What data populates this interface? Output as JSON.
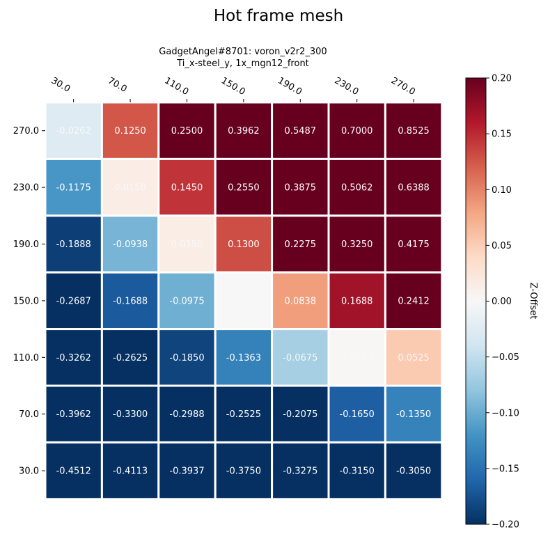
{
  "chart_data": {
    "type": "heatmap",
    "title": "Hot frame mesh",
    "subtitle_line1": "GadgetAngel#8701: voron_v2r2_300",
    "subtitle_line2": "Ti_x-steel_y, 1x_mgn12_front",
    "x_ticks": [
      "30.0",
      "70.0",
      "110.0",
      "150.0",
      "190.0",
      "230.0",
      "270.0"
    ],
    "y_ticks": [
      "270.0",
      "230.0",
      "190.0",
      "150.0",
      "110.0",
      "70.0",
      "30.0"
    ],
    "values": [
      [
        -0.0262,
        0.125,
        0.25,
        0.3962,
        0.5487,
        0.7,
        0.8525
      ],
      [
        -0.1175,
        0.015,
        0.145,
        0.255,
        0.3875,
        0.5062,
        0.6388
      ],
      [
        -0.1888,
        -0.0938,
        0.015,
        0.13,
        0.2275,
        0.325,
        0.4175
      ],
      [
        -0.2687,
        -0.1688,
        -0.0975,
        0.0,
        0.0838,
        0.1688,
        0.2412
      ],
      [
        -0.3262,
        -0.2625,
        -0.185,
        -0.1363,
        -0.0675,
        0.0013,
        0.0525
      ],
      [
        -0.3962,
        -0.33,
        -0.2988,
        -0.2525,
        -0.2075,
        -0.165,
        -0.135
      ],
      [
        -0.4512,
        -0.4113,
        -0.3937,
        -0.375,
        -0.3275,
        -0.315,
        -0.305
      ]
    ],
    "value_labels": [
      [
        "-0.0262",
        "0.1250",
        "0.2500",
        "0.3962",
        "0.5487",
        "0.7000",
        "0.8525"
      ],
      [
        "-0.1175",
        "0.0150",
        "0.1450",
        "0.2550",
        "0.3875",
        "0.5062",
        "0.6388"
      ],
      [
        "-0.1888",
        "-0.0938",
        "0.0150",
        "0.1300",
        "0.2275",
        "0.3250",
        "0.4175"
      ],
      [
        "-0.2687",
        "-0.1688",
        "-0.0975",
        "0.0000",
        "0.0838",
        "0.1688",
        "0.2412"
      ],
      [
        "-0.3262",
        "-0.2625",
        "-0.1850",
        "-0.1363",
        "-0.0675",
        "0.0013",
        "0.0525"
      ],
      [
        "-0.3962",
        "-0.3300",
        "-0.2988",
        "-0.2525",
        "-0.2075",
        "-0.1650",
        "-0.1350"
      ],
      [
        "-0.4512",
        "-0.4113",
        "-0.3937",
        "-0.3750",
        "-0.3275",
        "-0.3150",
        "-0.3050"
      ]
    ],
    "colorbar": {
      "label": "Z-Offset",
      "range": [
        -0.2,
        0.2
      ],
      "ticks": [
        "−0.20",
        "−0.15",
        "−0.10",
        "−0.05",
        "0.00",
        "0.05",
        "0.10",
        "0.15",
        "0.20"
      ],
      "colormap": "RdBu_r"
    },
    "grid": false
  }
}
